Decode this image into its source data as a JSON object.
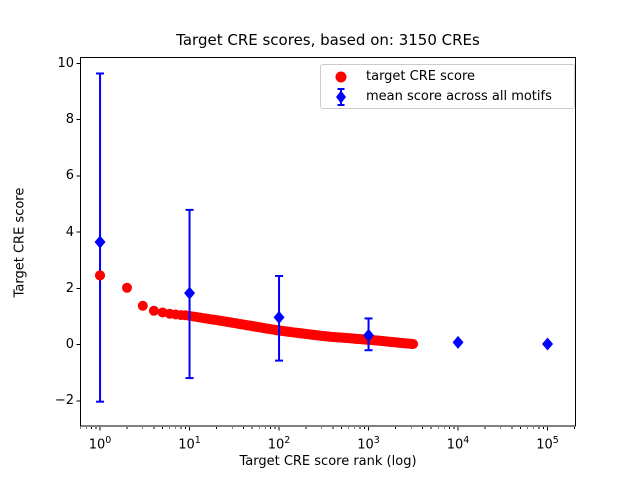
{
  "window": {
    "background": "#ffffff"
  },
  "chart_data": {
    "type": "scatter",
    "title": "Target CRE scores, based on: 3150 CREs",
    "xlabel": "Target CRE score rank (log)",
    "ylabel": "Target CRE score",
    "x_scale": "log",
    "xlim": [
      0.597,
      208000
    ],
    "ylim": [
      -2.93,
      10.19
    ],
    "grid": false,
    "legend_position": "upper right",
    "x_major_ticks": [
      {
        "base": 10,
        "exp": 0
      },
      {
        "base": 10,
        "exp": 1
      },
      {
        "base": 10,
        "exp": 2
      },
      {
        "base": 10,
        "exp": 3
      },
      {
        "base": 10,
        "exp": 4
      },
      {
        "base": 10,
        "exp": 5
      }
    ],
    "y_ticks": [
      {
        "value": -2,
        "label": "−2"
      },
      {
        "value": 0,
        "label": "0"
      },
      {
        "value": 2,
        "label": "2"
      },
      {
        "value": 4,
        "label": "4"
      },
      {
        "value": 6,
        "label": "6"
      },
      {
        "value": 8,
        "label": "8"
      },
      {
        "value": 10,
        "label": "10"
      }
    ],
    "series": [
      {
        "name": "target CRE score",
        "marker": "circle",
        "color": "#ff0000",
        "n_points": 3150,
        "curve_anchors_rank_score": [
          [
            1,
            2.46
          ],
          [
            2,
            2.02
          ],
          [
            3,
            1.38
          ],
          [
            4,
            1.2
          ],
          [
            5,
            1.14
          ],
          [
            6,
            1.1
          ],
          [
            7,
            1.07
          ],
          [
            8,
            1.05
          ],
          [
            9,
            1.04
          ],
          [
            10,
            1.02
          ],
          [
            12,
            0.98
          ],
          [
            15,
            0.93
          ],
          [
            20,
            0.87
          ],
          [
            25,
            0.82
          ],
          [
            30,
            0.78
          ],
          [
            40,
            0.71
          ],
          [
            50,
            0.66
          ],
          [
            70,
            0.58
          ],
          [
            100,
            0.5
          ],
          [
            140,
            0.44
          ],
          [
            200,
            0.38
          ],
          [
            300,
            0.31
          ],
          [
            400,
            0.27
          ],
          [
            500,
            0.25
          ],
          [
            700,
            0.21
          ],
          [
            1000,
            0.17
          ],
          [
            1400,
            0.13
          ],
          [
            2000,
            0.08
          ],
          [
            2500,
            0.05
          ],
          [
            3150,
            0.02
          ]
        ]
      },
      {
        "name": "mean score across all motifs",
        "marker": "diamond",
        "color": "#0000ff",
        "points": [
          {
            "x": 1,
            "y": 3.65,
            "y_low": -2.03,
            "y_high": 9.64
          },
          {
            "x": 10,
            "y": 1.83,
            "y_low": -1.19,
            "y_high": 4.79
          },
          {
            "x": 100,
            "y": 0.97,
            "y_low": -0.57,
            "y_high": 2.44
          },
          {
            "x": 1000,
            "y": 0.33,
            "y_low": -0.2,
            "y_high": 0.93
          },
          {
            "x": 10000,
            "y": 0.08,
            "y_low": 0.08,
            "y_high": 0.08
          },
          {
            "x": 100000,
            "y": 0.02,
            "y_low": 0.02,
            "y_high": 0.02
          }
        ]
      }
    ]
  }
}
